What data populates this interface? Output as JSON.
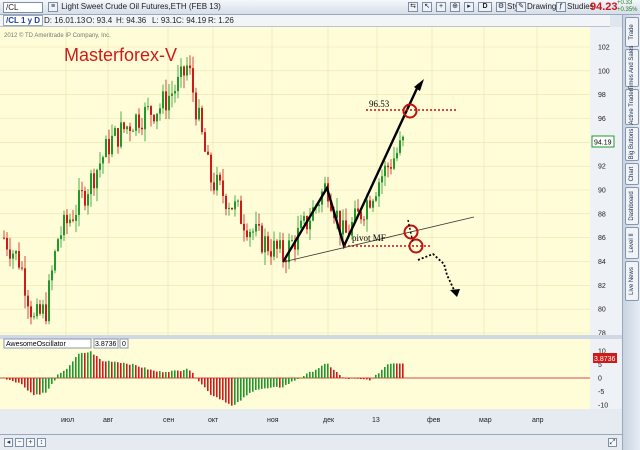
{
  "toolbar": {
    "symbol": "/CL",
    "description": "Light Sweet Crude Oil Futures,ETH (FEB 13)",
    "d_label": "D",
    "style_label": "Style",
    "drawings_label": "Drawings",
    "studies_label": "Studies",
    "last_price": "94.23",
    "change_top": "+0.33",
    "change_bottom": "+0.35%"
  },
  "infobar": {
    "timeframe": "/CL 1 y D",
    "date": "D: 16.01.13",
    "open": "O: 93.4",
    "high": "H: 94.36",
    "low": "L: 93.1",
    "close": "C: 94.19",
    "range": "R: 1.26"
  },
  "chart": {
    "copyright": "2012 © TD Ameritrade IP Company, Inc.",
    "watermark": "Masterforex-V",
    "label_9653": "96.53",
    "label_pivot": "pivot MF",
    "current_price": "94.19",
    "y_ticks": [
      "102",
      "100",
      "98",
      "96",
      "94",
      "92",
      "90",
      "88",
      "86",
      "84",
      "82",
      "80",
      "78"
    ],
    "x_ticks": [
      "июл",
      "авг",
      "сен",
      "окт",
      "ноя",
      "дек",
      "13",
      "фев",
      "мар",
      "апр"
    ]
  },
  "oscillator": {
    "name": "AwesomeOscillator",
    "value": "3.8736",
    "zero_label": "0",
    "current_value": "3.8736",
    "y_ticks": [
      "10",
      "5",
      "0",
      "-5",
      "-10"
    ]
  },
  "sidebar": {
    "tabs": [
      "Trade",
      "Times And Sales",
      "Active Trader",
      "Big Buttons",
      "Chart",
      "Dashboard",
      "Level II",
      "Live News"
    ]
  },
  "colors": {
    "bull": "#1f9a2a",
    "bear": "#d01a1a",
    "chart_bg": "#fffdd7",
    "accent_red": "#d2141b"
  },
  "chart_data": {
    "type": "candlestick",
    "title": "Light Sweet Crude Oil Futures,ETH (FEB 13)",
    "ylim": [
      77,
      104
    ],
    "x_range": [
      "2012-06",
      "2013-04"
    ],
    "approx_closes_by_month": [
      {
        "month": "июл",
        "close": 84
      },
      {
        "month": "авг",
        "close": 96
      },
      {
        "month": "сен",
        "close": 98
      },
      {
        "month": "окт",
        "close": 89
      },
      {
        "month": "ноя",
        "close": 86
      },
      {
        "month": "дек",
        "close": 86
      },
      {
        "month": "13",
        "close": 92
      },
      {
        "month": "фев",
        "close": 94.19
      }
    ],
    "annotations": [
      "96.53",
      "pivot MF"
    ],
    "oscillator": {
      "name": "AwesomeOscillator",
      "last": 3.8736,
      "ylim": [
        -11,
        11
      ]
    }
  }
}
